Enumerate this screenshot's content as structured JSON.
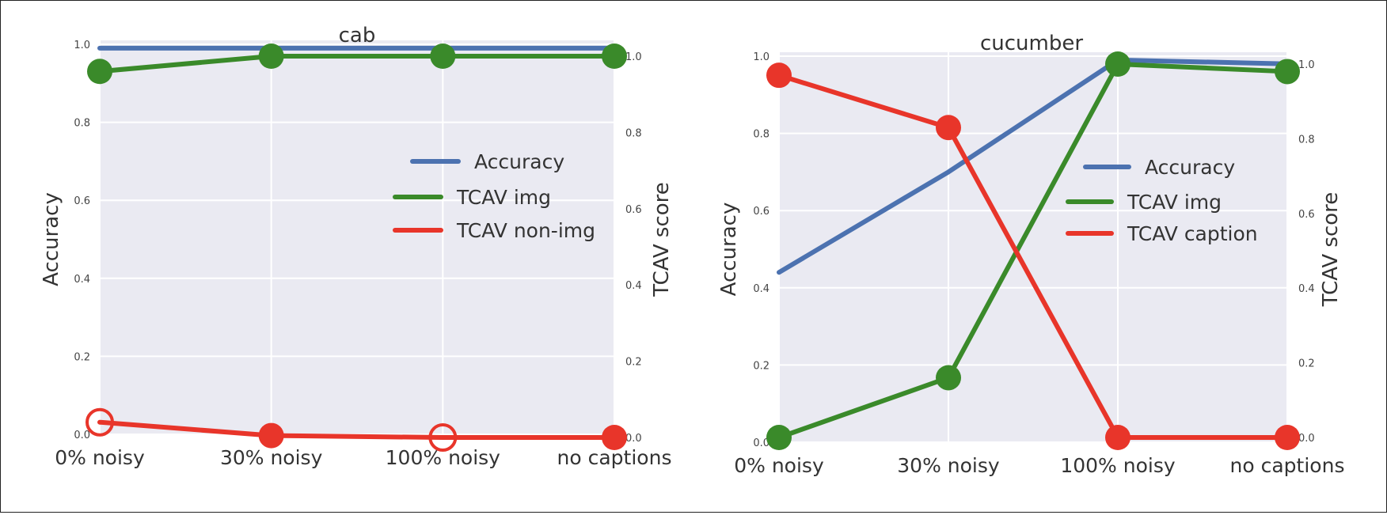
{
  "chart_data": [
    {
      "type": "line",
      "title": "cab",
      "categories": [
        "0% noisy",
        "30% noisy",
        "100% noisy",
        "no captions"
      ],
      "ylabel": "Accuracy",
      "y2label": "TCAV score",
      "ylim": [
        0,
        1.0
      ],
      "y2lim": [
        0,
        1.0
      ],
      "yticks": [
        "0.0",
        "0.2",
        "0.4",
        "0.6",
        "0.8",
        "1.0"
      ],
      "y2ticks": [
        "0.0",
        "0.2",
        "0.4",
        "0.6",
        "0.8",
        "1.0"
      ],
      "grid": true,
      "legend_position": "center-right",
      "series": [
        {
          "name": "Accuracy",
          "axis": "left",
          "color": "#4c72b0",
          "values": [
            0.99,
            0.99,
            0.99,
            0.99
          ],
          "markers": false
        },
        {
          "name": "TCAV img",
          "axis": "right",
          "color": "#3a8a2a",
          "values": [
            0.96,
            1.0,
            1.0,
            1.0
          ],
          "markers": true,
          "hollow": [
            false,
            false,
            false,
            false
          ]
        },
        {
          "name": "TCAV non-img",
          "axis": "right",
          "color": "#e8352a",
          "values": [
            0.04,
            0.005,
            0.0,
            0.0
          ],
          "markers": true,
          "hollow": [
            true,
            false,
            true,
            false
          ]
        }
      ]
    },
    {
      "type": "line",
      "title": "cucumber",
      "categories": [
        "0% noisy",
        "30% noisy",
        "100% noisy",
        "no captions"
      ],
      "ylabel": "Accuracy",
      "y2label": "TCAV score",
      "ylim": [
        0,
        1.0
      ],
      "y2lim": [
        0,
        1.0
      ],
      "yticks": [
        "0.0",
        "0.2",
        "0.4",
        "0.6",
        "0.8",
        "1.0"
      ],
      "y2ticks": [
        "0.0",
        "0.2",
        "0.4",
        "0.6",
        "0.8",
        "1.0"
      ],
      "grid": true,
      "legend_position": "center-right",
      "series": [
        {
          "name": "Accuracy",
          "axis": "left",
          "color": "#4c72b0",
          "values": [
            0.44,
            0.7,
            0.99,
            0.98
          ],
          "markers": false
        },
        {
          "name": "TCAV img",
          "axis": "right",
          "color": "#3a8a2a",
          "values": [
            0.0,
            0.16,
            1.0,
            0.98
          ],
          "markers": true,
          "hollow": [
            false,
            false,
            false,
            false
          ]
        },
        {
          "name": "TCAV caption",
          "axis": "right",
          "color": "#e8352a",
          "values": [
            0.97,
            0.83,
            0.0,
            0.0
          ],
          "markers": true,
          "hollow": [
            false,
            false,
            false,
            false
          ]
        }
      ]
    }
  ]
}
